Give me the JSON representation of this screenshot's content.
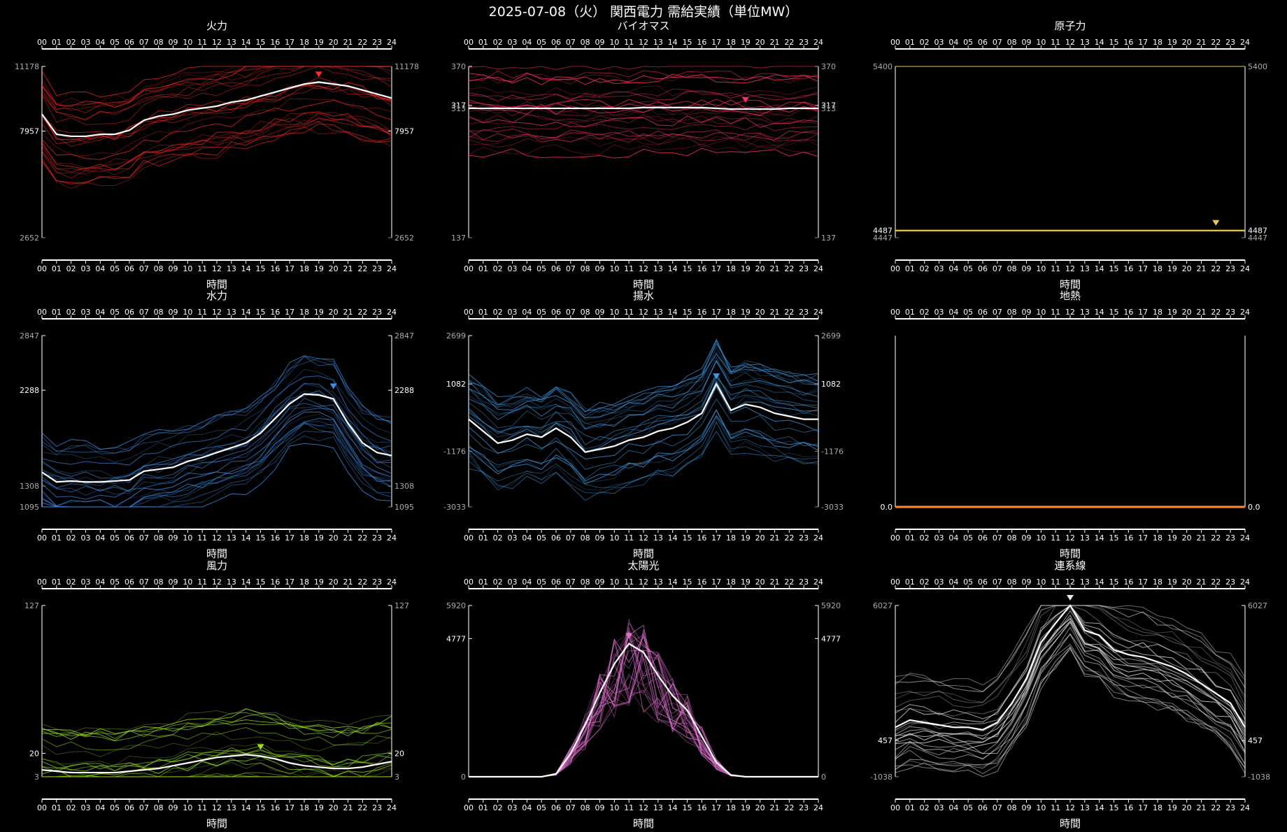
{
  "title": "2025-07-08（火） 関西電力 需給実績（単位MW）",
  "xlabel": "時間",
  "hours": [
    "00",
    "01",
    "02",
    "03",
    "04",
    "05",
    "06",
    "07",
    "08",
    "09",
    "10",
    "11",
    "12",
    "13",
    "14",
    "15",
    "16",
    "17",
    "18",
    "19",
    "20",
    "21",
    "22",
    "23",
    "24"
  ],
  "chart_data": [
    {
      "type": "line",
      "title": "火力",
      "ylabel_ticks": [
        "11178",
        "7957",
        "2652"
      ],
      "ylim": [
        2652,
        11178
      ],
      "tick_values": [
        11178,
        7957,
        2652
      ],
      "highlight_tick_index": 1,
      "color": "#ff2a2a",
      "peak_marker_hour": 19,
      "series": [
        {
          "values": [
            8800,
            7800,
            7700,
            7700,
            7800,
            7800,
            8000,
            8500,
            8700,
            8800,
            9000,
            9100,
            9200,
            9400,
            9500,
            9700,
            9900,
            10100,
            10300,
            10400,
            10300,
            10200,
            10000,
            9800,
            9600
          ]
        }
      ]
    },
    {
      "type": "line",
      "title": "バイオマス",
      "ylabel_ticks": [
        "370",
        "317",
        "313",
        "137"
      ],
      "ylim": [
        137,
        370
      ],
      "tick_values": [
        370,
        317,
        313,
        137
      ],
      "highlight_tick_index": 1,
      "color": "#ff3060",
      "peak_marker_hour": 19,
      "series": [
        {
          "values": [
            313,
            313,
            313,
            313,
            313,
            313,
            313,
            313,
            313,
            313,
            313,
            313,
            314,
            314,
            314,
            314,
            314,
            313,
            312,
            312,
            312,
            312,
            313,
            313,
            313
          ]
        }
      ]
    },
    {
      "type": "line",
      "title": "原子力",
      "ylabel_ticks": [
        "5400",
        "4487",
        "4447"
      ],
      "ylim": [
        4447,
        5400
      ],
      "tick_values": [
        5400,
        4487,
        4447
      ],
      "highlight_tick_index": 1,
      "color": "#f2c94c",
      "peak_marker_hour": 22,
      "series": [
        {
          "values": [
            4487,
            4487,
            4487,
            4487,
            4487,
            4487,
            4487,
            4487,
            4487,
            4487,
            4487,
            4487,
            4487,
            4487,
            4487,
            4487,
            4487,
            4487,
            4487,
            4487,
            4487,
            4487,
            4487,
            4487,
            4487
          ]
        }
      ]
    },
    {
      "type": "line",
      "title": "水力",
      "ylabel_ticks": [
        "2847",
        "2288",
        "1308",
        "1095"
      ],
      "ylim": [
        1095,
        2847
      ],
      "tick_values": [
        2847,
        2288,
        1308,
        1095
      ],
      "highlight_tick_index": 1,
      "color": "#3b8fe8",
      "peak_marker_hour": 20,
      "series": [
        {
          "values": [
            1450,
            1350,
            1360,
            1350,
            1350,
            1360,
            1370,
            1460,
            1480,
            1500,
            1560,
            1600,
            1650,
            1700,
            1750,
            1850,
            2000,
            2150,
            2250,
            2240,
            2200,
            1950,
            1750,
            1650,
            1620
          ]
        }
      ]
    },
    {
      "type": "line",
      "title": "揚水",
      "ylabel_ticks": [
        "2699",
        "1082",
        "-1176",
        "-3033"
      ],
      "ylim": [
        -3033,
        2699
      ],
      "tick_values": [
        2699,
        1082,
        -1176,
        -3033
      ],
      "highlight_tick_index": 1,
      "color": "#3b9de8",
      "peak_marker_hour": 17,
      "series": [
        {
          "values": [
            -100,
            -500,
            -900,
            -800,
            -600,
            -700,
            -400,
            -700,
            -1200,
            -1100,
            -1000,
            -800,
            -700,
            -500,
            -400,
            -200,
            100,
            1082,
            200,
            400,
            300,
            100,
            0,
            -100,
            -100
          ]
        }
      ]
    },
    {
      "type": "line",
      "title": "地熱",
      "ylabel_ticks": [
        "0.0"
      ],
      "ylim": [
        0,
        1
      ],
      "tick_values": [
        0
      ],
      "highlight_tick_index": 0,
      "color": "#ff8c2a",
      "peak_marker_hour": null,
      "series": [
        {
          "values": [
            0,
            0,
            0,
            0,
            0,
            0,
            0,
            0,
            0,
            0,
            0,
            0,
            0,
            0,
            0,
            0,
            0,
            0,
            0,
            0,
            0,
            0,
            0,
            0,
            0
          ]
        }
      ]
    },
    {
      "type": "line",
      "title": "風力",
      "ylabel_ticks": [
        "127",
        "20",
        "3"
      ],
      "ylim": [
        3,
        127
      ],
      "tick_values": [
        127,
        20,
        3
      ],
      "highlight_tick_index": 1,
      "color": "#9be21a",
      "peak_marker_hour": 15,
      "series": [
        {
          "values": [
            8,
            7,
            6,
            6,
            6,
            6,
            7,
            8,
            9,
            11,
            13,
            15,
            17,
            18,
            19,
            18,
            16,
            13,
            11,
            10,
            9,
            9,
            10,
            12,
            14
          ]
        }
      ]
    },
    {
      "type": "line",
      "title": "太陽光",
      "ylabel_ticks": [
        "5920",
        "4777",
        "0"
      ],
      "ylim": [
        0,
        5920
      ],
      "tick_values": [
        5920,
        4777,
        0
      ],
      "highlight_tick_index": 1,
      "color": "#e070d0",
      "peak_marker_hour": 11,
      "series": [
        {
          "values": [
            0,
            0,
            0,
            0,
            0,
            0,
            100,
            800,
            1800,
            2900,
            3900,
            4600,
            4300,
            3500,
            2800,
            2300,
            1400,
            500,
            60,
            0,
            0,
            0,
            0,
            0,
            0
          ]
        }
      ]
    },
    {
      "type": "line",
      "title": "連系線",
      "ylabel_ticks": [
        "6027",
        "457",
        "-1038"
      ],
      "ylim": [
        -1038,
        6027
      ],
      "tick_values": [
        6027,
        457,
        -1038
      ],
      "highlight_tick_index": 1,
      "color": "#e8e8e8",
      "peak_marker_hour": 12,
      "series": [
        {
          "values": [
            1000,
            1300,
            1200,
            1100,
            1000,
            1000,
            900,
            1200,
            2000,
            3000,
            4500,
            5300,
            6027,
            5000,
            4800,
            4200,
            4000,
            3900,
            3700,
            3500,
            3200,
            2800,
            2400,
            2000,
            1000
          ]
        }
      ]
    }
  ]
}
